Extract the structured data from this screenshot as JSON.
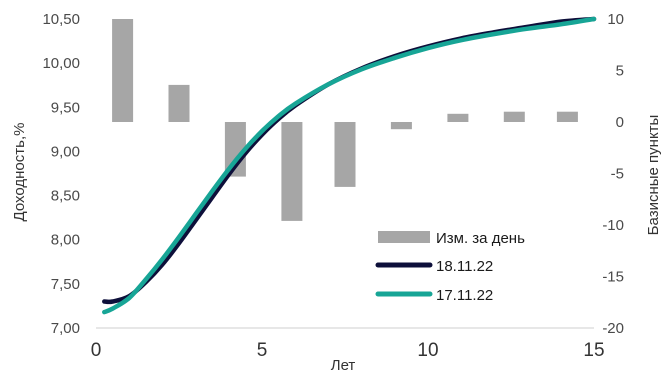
{
  "chart_data": {
    "type": "bar+line",
    "xlabel": "Лет",
    "ylabel": "Доходность,%",
    "y2label": "Базисные пункты",
    "x_ticks": [
      0,
      5,
      10,
      15
    ],
    "y_ticks": [
      "7,00",
      "7,50",
      "8,00",
      "8,50",
      "9,00",
      "9,50",
      "10,00",
      "10,50"
    ],
    "y2_ticks": [
      "-20",
      "-15",
      "-10",
      "-5",
      "0",
      "5",
      "10"
    ],
    "xlim": [
      0,
      15
    ],
    "ylim": [
      7.0,
      10.5
    ],
    "y2lim": [
      -20,
      10
    ],
    "grid": false,
    "legend_position": "bottom-right",
    "bars": {
      "name": "Изм. за день",
      "color": "#a6a6a6",
      "axis": "right",
      "x": [
        0.8,
        2.5,
        4.2,
        5.9,
        7.5,
        9.2,
        10.9,
        12.6,
        14.2
      ],
      "values": [
        10,
        3.6,
        -5.3,
        -9.6,
        -6.3,
        -0.7,
        0.8,
        1.0,
        1.0
      ]
    },
    "series": [
      {
        "name": "18.11.22",
        "color": "#0d0f3a",
        "axis": "left",
        "x": [
          0.25,
          0.5,
          1,
          1.5,
          2,
          2.5,
          3,
          3.5,
          4,
          4.5,
          5,
          5.5,
          6,
          7,
          8,
          9,
          10,
          11,
          12,
          13,
          14,
          15
        ],
        "values": [
          7.3,
          7.3,
          7.36,
          7.52,
          7.72,
          7.96,
          8.22,
          8.48,
          8.74,
          8.98,
          9.19,
          9.37,
          9.52,
          9.76,
          9.94,
          10.08,
          10.19,
          10.28,
          10.35,
          10.41,
          10.47,
          10.5
        ]
      },
      {
        "name": "17.11.22",
        "color": "#17a596",
        "axis": "left",
        "x": [
          0.25,
          0.5,
          1,
          1.5,
          2,
          2.5,
          3,
          3.5,
          4,
          4.5,
          5,
          5.5,
          6,
          7,
          8,
          9,
          10,
          11,
          12,
          13,
          14,
          15
        ],
        "values": [
          7.18,
          7.22,
          7.34,
          7.55,
          7.78,
          8.03,
          8.29,
          8.55,
          8.8,
          9.03,
          9.23,
          9.4,
          9.54,
          9.76,
          9.93,
          10.06,
          10.17,
          10.26,
          10.33,
          10.39,
          10.44,
          10.5
        ]
      }
    ]
  }
}
